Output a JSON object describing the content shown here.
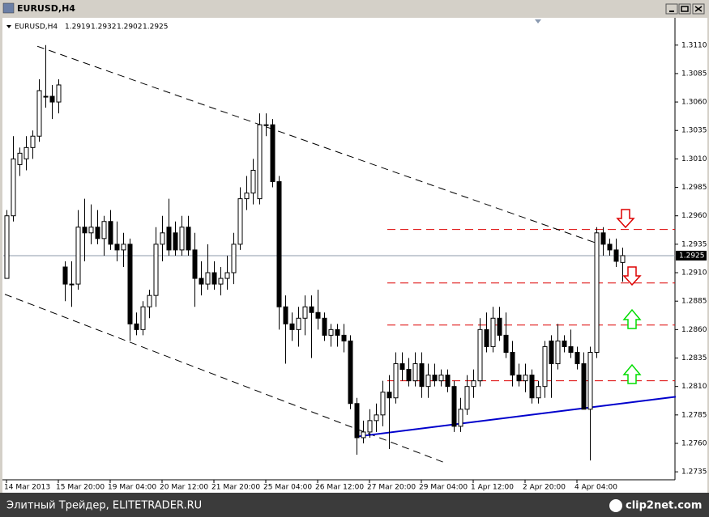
{
  "window_title": "EURUSD,H4",
  "footer": {
    "source": "Элитный Трейдер, ELITETRADER.RU",
    "logo": "clip2net.com"
  },
  "chart_data": {
    "type": "candlestick",
    "title": "EURUSD,H4",
    "categories": [
      "14 Mar 2013",
      null,
      null,
      null,
      null,
      null,
      null,
      null,
      "15 Mar 20:00",
      null,
      null,
      null,
      null,
      null,
      null,
      null,
      "19 Mar 04:00",
      null,
      null,
      null,
      null,
      null,
      null,
      null,
      "20 Mar 12:00",
      null,
      null,
      null,
      null,
      null,
      null,
      null,
      "21 Mar 20:00",
      null,
      null,
      null,
      null,
      null,
      null,
      null,
      "25 Mar 04:00",
      null,
      null,
      null,
      null,
      null,
      null,
      null,
      "26 Mar 12:00",
      null,
      null,
      null,
      null,
      null,
      null,
      null,
      "27 Mar 20:00",
      null,
      null,
      null,
      null,
      null,
      null,
      null,
      "29 Mar 04:00",
      null,
      null,
      null,
      null,
      null,
      null,
      null,
      "1 Apr 12:00",
      null,
      null,
      null,
      null,
      null,
      null,
      null,
      "2 Apr 20:00",
      null,
      null,
      null,
      null,
      null,
      null,
      null,
      "4 Apr 04:00",
      null,
      null,
      null,
      null,
      null,
      null,
      null
    ],
    "open": [
      1.2905,
      1.296,
      1.3005,
      1.301,
      1.302,
      1.303,
      1.3065,
      1.3065,
      1.306,
      1.2915,
      1.29,
      1.29,
      1.295,
      1.2945,
      1.295,
      1.294,
      1.2955,
      1.2935,
      1.293,
      1.2935,
      1.2865,
      1.286,
      1.288,
      1.289,
      1.2935,
      1.295,
      1.2945,
      1.293,
      1.295,
      1.293,
      1.2905,
      1.29,
      1.291,
      1.29,
      1.2905,
      1.291,
      1.2935,
      1.2975,
      1.298,
      1.2975,
      1.304,
      1.304,
      1.299,
      1.288,
      1.2865,
      1.286,
      1.287,
      1.288,
      1.2875,
      1.287,
      1.2855,
      1.286,
      1.2855,
      1.285,
      1.2795,
      1.2765,
      1.277,
      1.278,
      1.2785,
      1.2805,
      1.28,
      1.283,
      1.2825,
      1.2815,
      1.283,
      1.281,
      1.282,
      1.2815,
      1.282,
      1.281,
      1.2775,
      1.279,
      1.281,
      1.2815,
      1.286,
      1.2845,
      1.287,
      1.2855,
      1.284,
      1.282,
      1.2815,
      1.282,
      1.28,
      1.281,
      1.285,
      1.283,
      1.285,
      1.2845,
      1.284,
      1.283,
      1.279,
      1.284,
      1.2945,
      1.2935,
      1.293,
      1.2919
    ],
    "high": [
      1.2965,
      1.303,
      1.302,
      1.303,
      1.3035,
      1.308,
      1.311,
      1.3075,
      1.308,
      1.292,
      1.292,
      1.2965,
      1.2975,
      1.297,
      1.2965,
      1.296,
      1.2965,
      1.2955,
      1.2945,
      1.294,
      1.2875,
      1.2885,
      1.2895,
      1.295,
      1.296,
      1.2975,
      1.2955,
      1.296,
      1.296,
      1.2945,
      1.292,
      1.2935,
      1.292,
      1.2915,
      1.2925,
      1.2945,
      1.2985,
      1.2995,
      1.301,
      1.305,
      1.305,
      1.3045,
      1.2995,
      1.289,
      1.2875,
      1.288,
      1.289,
      1.289,
      1.2895,
      1.2875,
      1.2865,
      1.2865,
      1.2865,
      1.2855,
      1.28,
      1.278,
      1.279,
      1.2795,
      1.2815,
      1.282,
      1.284,
      1.284,
      1.2835,
      1.284,
      1.284,
      1.283,
      1.283,
      1.2825,
      1.2825,
      1.2815,
      1.28,
      1.282,
      1.2825,
      1.287,
      1.2875,
      1.288,
      1.288,
      1.2875,
      1.285,
      1.283,
      1.283,
      1.2825,
      1.2815,
      1.285,
      1.2855,
      1.2865,
      1.2855,
      1.286,
      1.2845,
      1.284,
      1.2845,
      1.295,
      1.295,
      1.294,
      1.294,
      1.2932
    ],
    "low": [
      1.2905,
      1.2955,
      1.2995,
      1.3,
      1.301,
      1.3025,
      1.3055,
      1.3045,
      1.305,
      1.2885,
      1.288,
      1.2895,
      1.292,
      1.2935,
      1.2935,
      1.2925,
      1.293,
      1.292,
      1.2915,
      1.285,
      1.2855,
      1.2855,
      1.287,
      1.288,
      1.292,
      1.2925,
      1.2925,
      1.2925,
      1.2925,
      1.288,
      1.289,
      1.2895,
      1.2895,
      1.289,
      1.2895,
      1.29,
      1.293,
      1.2965,
      1.297,
      1.297,
      1.303,
      1.2985,
      1.286,
      1.283,
      1.285,
      1.2845,
      1.2855,
      1.2835,
      1.286,
      1.285,
      1.2845,
      1.2845,
      1.284,
      1.279,
      1.275,
      1.276,
      1.2765,
      1.277,
      1.2775,
      1.2755,
      1.2795,
      1.2815,
      1.281,
      1.281,
      1.28,
      1.28,
      1.281,
      1.281,
      1.2805,
      1.277,
      1.277,
      1.2785,
      1.28,
      1.281,
      1.284,
      1.284,
      1.285,
      1.2835,
      1.281,
      1.281,
      1.2805,
      1.2795,
      1.2795,
      1.28,
      1.28,
      1.2825,
      1.284,
      1.2835,
      1.2825,
      1.279,
      1.2745,
      1.2835,
      1.2925,
      1.2925,
      1.2915,
      1.2902
    ],
    "close": [
      1.296,
      1.301,
      1.3015,
      1.302,
      1.303,
      1.307,
      1.3065,
      1.306,
      1.3075,
      1.29,
      1.29,
      1.295,
      1.2945,
      1.295,
      1.294,
      1.2955,
      1.2935,
      1.293,
      1.2935,
      1.2865,
      1.286,
      1.288,
      1.289,
      1.2935,
      1.2945,
      1.293,
      1.293,
      1.295,
      1.293,
      1.2905,
      1.29,
      1.291,
      1.29,
      1.2905,
      1.291,
      1.2935,
      1.2975,
      1.298,
      1.3,
      1.304,
      1.304,
      1.299,
      1.288,
      1.2865,
      1.286,
      1.287,
      1.288,
      1.2875,
      1.287,
      1.2855,
      1.286,
      1.2855,
      1.285,
      1.2795,
      1.2765,
      1.277,
      1.278,
      1.2785,
      1.2805,
      1.28,
      1.283,
      1.2825,
      1.2815,
      1.283,
      1.281,
      1.282,
      1.2815,
      1.282,
      1.281,
      1.2775,
      1.279,
      1.281,
      1.2815,
      1.286,
      1.2845,
      1.287,
      1.2855,
      1.284,
      1.282,
      1.2815,
      1.282,
      1.28,
      1.281,
      1.2845,
      1.283,
      1.285,
      1.2845,
      1.284,
      1.283,
      1.279,
      1.284,
      1.2945,
      1.2935,
      1.293,
      1.292,
      1.2925
    ],
    "up_color": "#ffffff",
    "down_color": "#000000",
    "wick_color": "#000000",
    "ylim": [
      1.2728,
      1.3134
    ],
    "yticks": [
      1.2735,
      {
        "value": 1.276,
        "label": "1.2760"
      },
      1.2785,
      {
        "value": 1.281,
        "label": "1.2810"
      },
      1.2835,
      {
        "value": 1.286,
        "label": "1.2860"
      },
      1.2885,
      {
        "value": 1.291,
        "label": "1.2910"
      },
      1.2935,
      {
        "value": 1.296,
        "label": "1.2960"
      },
      1.2985,
      {
        "value": 1.301,
        "label": "1.3010"
      },
      1.3035,
      {
        "value": 1.306,
        "label": "1.3060"
      },
      1.3085,
      {
        "value": 1.311,
        "label": "1.3110"
      }
    ],
    "current_price": 1.2925,
    "levels": [
      1.2948,
      1.2901,
      1.2864,
      1.2815
    ],
    "level_color": "#dd0000",
    "trendlines": [
      {
        "color": "#000000",
        "dashed": true,
        "points": [
          [
            4.75,
            1.3109
          ],
          [
            91,
            1.2936
          ]
        ]
      },
      {
        "color": "#000000",
        "dashed": true,
        "points": [
          [
            -0.25,
            1.2891
          ],
          [
            67.6,
            1.2743
          ]
        ]
      },
      {
        "color": "#0000cc",
        "dashed": false,
        "points": [
          [
            54.1,
            1.2766
          ],
          [
            103.25,
            1.2801
          ]
        ]
      }
    ]
  }
}
